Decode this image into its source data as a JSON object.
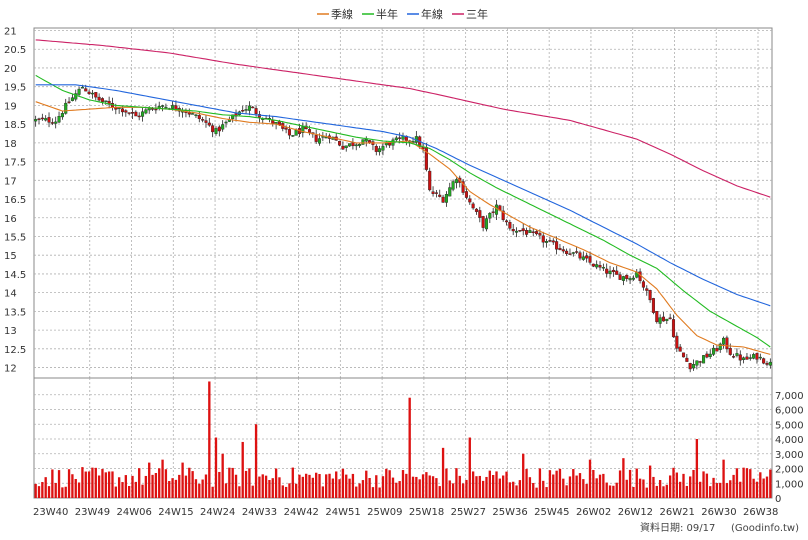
{
  "chart_data": [
    {
      "type": "candlestick",
      "title": "",
      "legend": {
        "placement": "top",
        "items": [
          {
            "name": "季線",
            "color": "#e07b20"
          },
          {
            "name": "半年",
            "color": "#22bb22"
          },
          {
            "name": "年線",
            "color": "#2266dd"
          },
          {
            "name": "三年",
            "color": "#cc2266"
          }
        ]
      },
      "y_ticks": [
        "21",
        "20.5",
        "20",
        "19.5",
        "19",
        "18.5",
        "18",
        "17.5",
        "17",
        "16.5",
        "16",
        "15.5",
        "15",
        "14.5",
        "14",
        "13.5",
        "13",
        "12.5",
        "12"
      ],
      "ylim": [
        11.8,
        21
      ],
      "grid": true,
      "up_color": "#22aa22",
      "down_color": "#cc1111",
      "price_path": [
        [
          0,
          18.6
        ],
        [
          6,
          18.6
        ],
        [
          10,
          19.1
        ],
        [
          14,
          19.5
        ],
        [
          18,
          19.2
        ],
        [
          22,
          19.0
        ],
        [
          26,
          18.9
        ],
        [
          30,
          18.7
        ],
        [
          34,
          18.9
        ],
        [
          38,
          19.0
        ],
        [
          44,
          18.9
        ],
        [
          50,
          18.6
        ],
        [
          54,
          18.3
        ],
        [
          58,
          18.6
        ],
        [
          62,
          18.9
        ],
        [
          64,
          18.95
        ],
        [
          68,
          18.7
        ],
        [
          72,
          18.5
        ],
        [
          76,
          18.2
        ],
        [
          80,
          18.35
        ],
        [
          84,
          18.1
        ],
        [
          88,
          18.2
        ],
        [
          92,
          17.9
        ],
        [
          96,
          18.0
        ],
        [
          98,
          18.1
        ],
        [
          102,
          17.8
        ],
        [
          106,
          18.0
        ],
        [
          110,
          18.1
        ],
        [
          114,
          18.1
        ],
        [
          116,
          17.8
        ],
        [
          118,
          16.7
        ],
        [
          122,
          16.5
        ],
        [
          126,
          17.1
        ],
        [
          130,
          16.4
        ],
        [
          134,
          15.8
        ],
        [
          138,
          16.3
        ],
        [
          142,
          15.7
        ],
        [
          146,
          15.65
        ],
        [
          150,
          15.5
        ],
        [
          154,
          15.3
        ],
        [
          158,
          15.15
        ],
        [
          162,
          15.0
        ],
        [
          166,
          14.8
        ],
        [
          170,
          14.6
        ],
        [
          174,
          14.45
        ],
        [
          178,
          14.4
        ],
        [
          180,
          14.55
        ],
        [
          184,
          13.8
        ],
        [
          186,
          13.3
        ],
        [
          190,
          13.3
        ],
        [
          192,
          12.5
        ],
        [
          196,
          12.05
        ],
        [
          200,
          12.25
        ],
        [
          204,
          12.5
        ],
        [
          206,
          12.7
        ],
        [
          208,
          12.4
        ],
        [
          212,
          12.2
        ],
        [
          216,
          12.3
        ],
        [
          220,
          12.1
        ]
      ],
      "ma_lines": [
        {
          "name": "季線",
          "color": "#e07b20",
          "points": [
            [
              0,
              19.1
            ],
            [
              8,
              18.85
            ],
            [
              16,
              18.9
            ],
            [
              24,
              18.95
            ],
            [
              32,
              18.95
            ],
            [
              40,
              18.9
            ],
            [
              48,
              18.8
            ],
            [
              56,
              18.65
            ],
            [
              64,
              18.55
            ],
            [
              72,
              18.5
            ],
            [
              80,
              18.3
            ],
            [
              88,
              18.15
            ],
            [
              96,
              18.0
            ],
            [
              104,
              18.0
            ],
            [
              112,
              18.05
            ],
            [
              118,
              17.7
            ],
            [
              124,
              17.3
            ],
            [
              130,
              16.7
            ],
            [
              136,
              16.35
            ],
            [
              142,
              16.05
            ],
            [
              148,
              15.75
            ],
            [
              156,
              15.45
            ],
            [
              164,
              15.15
            ],
            [
              172,
              14.8
            ],
            [
              180,
              14.55
            ],
            [
              186,
              14.1
            ],
            [
              192,
              13.4
            ],
            [
              198,
              12.85
            ],
            [
              204,
              12.6
            ],
            [
              212,
              12.55
            ],
            [
              220,
              12.35
            ]
          ]
        },
        {
          "name": "半年",
          "color": "#22bb22",
          "points": [
            [
              0,
              19.8
            ],
            [
              8,
              19.4
            ],
            [
              16,
              19.15
            ],
            [
              24,
              19.0
            ],
            [
              32,
              18.95
            ],
            [
              40,
              18.9
            ],
            [
              48,
              18.85
            ],
            [
              56,
              18.75
            ],
            [
              64,
              18.7
            ],
            [
              72,
              18.6
            ],
            [
              80,
              18.45
            ],
            [
              88,
              18.3
            ],
            [
              96,
              18.15
            ],
            [
              104,
              18.05
            ],
            [
              112,
              18.0
            ],
            [
              118,
              17.85
            ],
            [
              124,
              17.55
            ],
            [
              130,
              17.2
            ],
            [
              138,
              16.8
            ],
            [
              146,
              16.45
            ],
            [
              154,
              16.1
            ],
            [
              162,
              15.75
            ],
            [
              170,
              15.4
            ],
            [
              178,
              15.0
            ],
            [
              186,
              14.65
            ],
            [
              194,
              14.05
            ],
            [
              202,
              13.5
            ],
            [
              210,
              13.1
            ],
            [
              216,
              12.8
            ],
            [
              220,
              12.55
            ]
          ]
        },
        {
          "name": "年線",
          "color": "#2266dd",
          "points": [
            [
              0,
              19.55
            ],
            [
              12,
              19.55
            ],
            [
              24,
              19.4
            ],
            [
              36,
              19.2
            ],
            [
              48,
              19.0
            ],
            [
              60,
              18.8
            ],
            [
              72,
              18.7
            ],
            [
              84,
              18.55
            ],
            [
              96,
              18.4
            ],
            [
              104,
              18.3
            ],
            [
              112,
              18.15
            ],
            [
              120,
              17.85
            ],
            [
              130,
              17.4
            ],
            [
              140,
              17.0
            ],
            [
              150,
              16.6
            ],
            [
              160,
              16.2
            ],
            [
              170,
              15.75
            ],
            [
              180,
              15.3
            ],
            [
              190,
              14.8
            ],
            [
              200,
              14.35
            ],
            [
              210,
              13.95
            ],
            [
              220,
              13.65
            ]
          ]
        },
        {
          "name": "三年",
          "color": "#cc2266",
          "points": [
            [
              0,
              20.75
            ],
            [
              20,
              20.6
            ],
            [
              40,
              20.4
            ],
            [
              60,
              20.1
            ],
            [
              80,
              19.85
            ],
            [
              100,
              19.6
            ],
            [
              112,
              19.45
            ],
            [
              120,
              19.3
            ],
            [
              130,
              19.1
            ],
            [
              140,
              18.9
            ],
            [
              150,
              18.75
            ],
            [
              160,
              18.6
            ],
            [
              170,
              18.35
            ],
            [
              180,
              18.1
            ],
            [
              190,
              17.7
            ],
            [
              200,
              17.25
            ],
            [
              210,
              16.85
            ],
            [
              220,
              16.55
            ]
          ]
        }
      ]
    },
    {
      "type": "bar",
      "title": "",
      "y_ticks": [
        "7,000",
        "6,000",
        "5,000",
        "4,000",
        "3,000",
        "2,000",
        "1,000",
        "0"
      ],
      "ylim": [
        0,
        8000
      ],
      "bar_color": "#dd1111",
      "x_tick_labels": [
        "23W40",
        "23W49",
        "24W06",
        "24W15",
        "24W24",
        "24W33",
        "24W42",
        "24W51",
        "25W09",
        "25W18",
        "25W27",
        "25W36",
        "25W45",
        "26W02",
        "26W12",
        "26W21",
        "26W30",
        "26W38"
      ],
      "volume_spikes": [
        [
          16,
          1800
        ],
        [
          34,
          2400
        ],
        [
          38,
          2600
        ],
        [
          44,
          2400
        ],
        [
          52,
          7900
        ],
        [
          54,
          4100
        ],
        [
          56,
          3000
        ],
        [
          62,
          3800
        ],
        [
          66,
          5000
        ],
        [
          72,
          2000
        ],
        [
          90,
          1800
        ],
        [
          112,
          6800
        ],
        [
          122,
          3400
        ],
        [
          130,
          4100
        ],
        [
          146,
          3000
        ],
        [
          166,
          2600
        ],
        [
          176,
          2700
        ],
        [
          184,
          2200
        ],
        [
          198,
          4000
        ],
        [
          206,
          2600
        ]
      ]
    }
  ],
  "footer": {
    "date_label": "資料日期: 09/17",
    "source": "(Goodinfo.tw)"
  }
}
